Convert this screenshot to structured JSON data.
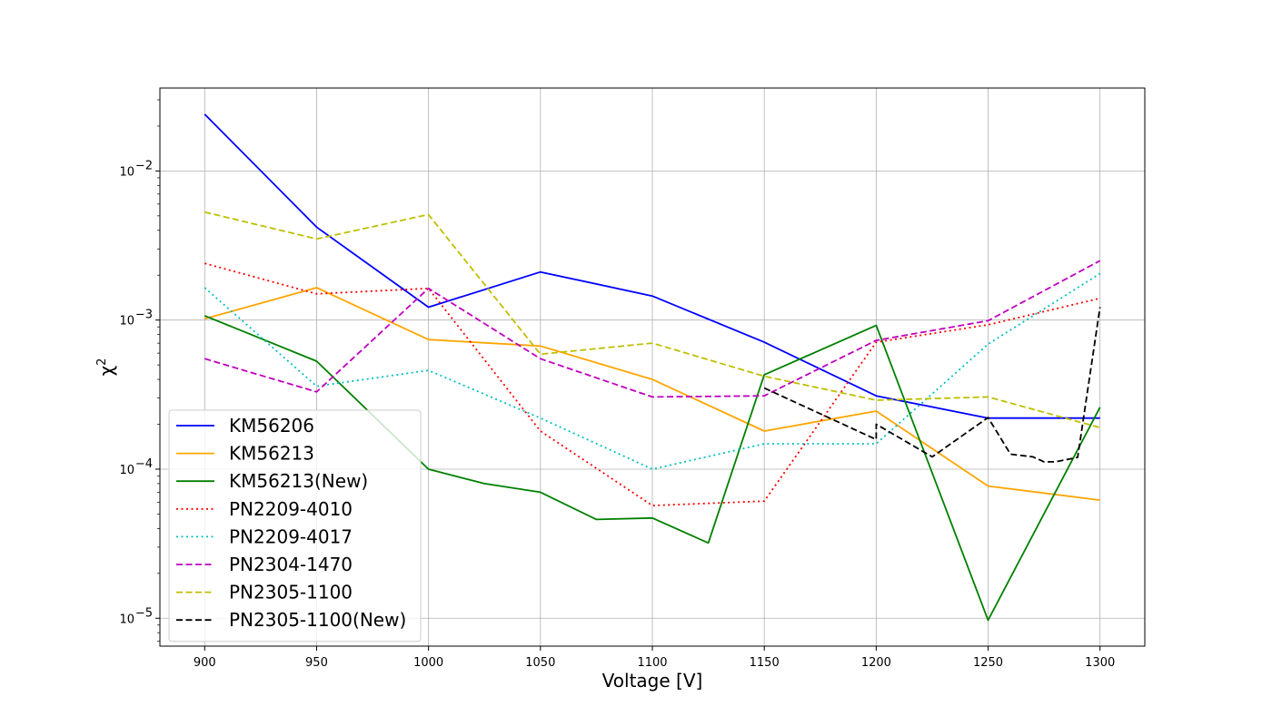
{
  "chart_data": {
    "type": "line",
    "title": "",
    "xlabel": "Voltage [V]",
    "ylabel": "χ",
    "ylabel_superscript": "2",
    "yscale": "log",
    "xlim": [
      880,
      1320
    ],
    "ylim": [
      6.5e-06,
      0.036
    ],
    "grid": true,
    "legend_position": "lower-left",
    "xticks": [
      {
        "v": 900,
        "label": "900"
      },
      {
        "v": 950,
        "label": "950"
      },
      {
        "v": 1000,
        "label": "1000"
      },
      {
        "v": 1050,
        "label": "1050"
      },
      {
        "v": 1100,
        "label": "1100"
      },
      {
        "v": 1150,
        "label": "1150"
      },
      {
        "v": 1200,
        "label": "1200"
      },
      {
        "v": 1250,
        "label": "1250"
      },
      {
        "v": 1300,
        "label": "1300"
      }
    ],
    "yticks": [
      {
        "v": 1e-05,
        "base": "10",
        "exp": "−5"
      },
      {
        "v": 0.0001,
        "base": "10",
        "exp": "−4"
      },
      {
        "v": 0.001,
        "base": "10",
        "exp": "−3"
      },
      {
        "v": 0.01,
        "base": "10",
        "exp": "−2"
      }
    ],
    "series": [
      {
        "name": "KM56206",
        "color": "#0000ff",
        "dash": "solid",
        "x": [
          900,
          950,
          1000,
          1050,
          1100,
          1150,
          1200,
          1250,
          1300
        ],
        "y": [
          0.024,
          0.0042,
          0.00122,
          0.0021,
          0.00145,
          0.00071,
          0.00031,
          0.00022,
          0.00022
        ]
      },
      {
        "name": "KM56213",
        "color": "#ffa500",
        "dash": "solid",
        "x": [
          900,
          950,
          1000,
          1050,
          1100,
          1150,
          1200,
          1250,
          1300
        ],
        "y": [
          0.00102,
          0.00165,
          0.00074,
          0.00067,
          0.0004,
          0.00018,
          0.000245,
          7.7e-05,
          6.2e-05
        ]
      },
      {
        "name": "KM56213(New)",
        "color": "#008000",
        "dash": "solid",
        "x": [
          900,
          950,
          1000,
          1025,
          1050,
          1075,
          1100,
          1125,
          1150,
          1200,
          1250,
          1300
        ],
        "y": [
          0.00107,
          0.00053,
          0.0001,
          8e-05,
          7e-05,
          4.6e-05,
          4.7e-05,
          3.2e-05,
          0.00043,
          0.00092,
          9.7e-06,
          0.00026
        ]
      },
      {
        "name": "PN2209-4010",
        "color": "#ff0000",
        "dash": "dotted",
        "x": [
          900,
          950,
          1000,
          1050,
          1100,
          1150,
          1200,
          1250,
          1300
        ],
        "y": [
          0.0024,
          0.0015,
          0.00163,
          0.00018,
          5.7e-05,
          6.1e-05,
          0.00071,
          0.00093,
          0.0014
        ]
      },
      {
        "name": "PN2209-4017",
        "color": "#00bfbf",
        "dash": "dotted",
        "x": [
          900,
          950,
          1000,
          1050,
          1100,
          1150,
          1200,
          1250,
          1300
        ],
        "y": [
          0.00165,
          0.00036,
          0.00046,
          0.00022,
          0.0001,
          0.000148,
          0.000148,
          0.00069,
          0.00205
        ]
      },
      {
        "name": "PN2304-1470",
        "color": "#bf00bf",
        "dash": "dashed",
        "x": [
          900,
          950,
          1000,
          1050,
          1100,
          1150,
          1200,
          1250,
          1300
        ],
        "y": [
          0.00055,
          0.00033,
          0.00163,
          0.00055,
          0.000305,
          0.00031,
          0.00073,
          0.00099,
          0.0025
        ]
      },
      {
        "name": "PN2305-1100",
        "color": "#bfbf00",
        "dash": "dashed",
        "x": [
          900,
          950,
          1000,
          1050,
          1100,
          1150,
          1200,
          1250,
          1300
        ],
        "y": [
          0.0053,
          0.0035,
          0.0051,
          0.00059,
          0.0007,
          0.00042,
          0.00029,
          0.000305,
          0.00019
        ]
      },
      {
        "name": "PN2305-1100(New)",
        "color": "#000000",
        "dash": "dashed",
        "x": [
          1150,
          1200,
          1200,
          1225,
          1250,
          1260,
          1270,
          1275,
          1280,
          1290,
          1300
        ],
        "y": [
          0.00035,
          0.000158,
          0.0002,
          0.000121,
          0.000222,
          0.000126,
          0.000121,
          0.000112,
          0.000112,
          0.00012,
          0.00122
        ]
      }
    ]
  }
}
